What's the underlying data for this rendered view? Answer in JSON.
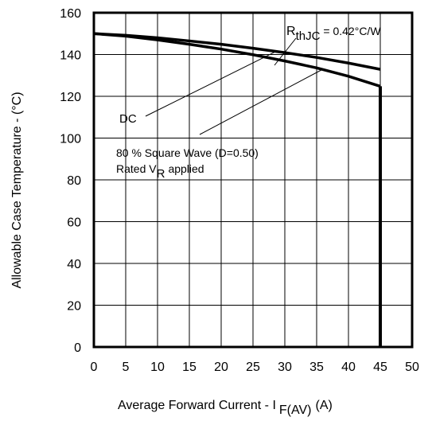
{
  "chart_data": {
    "type": "line",
    "title": "",
    "xlabel": "Average Forward Current - I",
    "xlabel_sub": "F(AV)",
    "xlabel_unit": "(A)",
    "ylabel": "Allowable Case Temperature - (°C)",
    "xlim": [
      0,
      50
    ],
    "ylim": [
      0,
      160
    ],
    "xticks": [
      0,
      5,
      10,
      15,
      20,
      25,
      30,
      35,
      40,
      45,
      50
    ],
    "yticks": [
      0,
      20,
      40,
      60,
      80,
      100,
      120,
      140,
      160
    ],
    "grid": true,
    "series": [
      {
        "name": "DC",
        "x": [
          0,
          5,
          10,
          15,
          20,
          25,
          30,
          35,
          40,
          45
        ],
        "y": [
          150,
          149.2,
          148,
          146.5,
          144.9,
          143,
          140.9,
          138.6,
          135.9,
          132.9
        ]
      },
      {
        "name": "80 % Square Wave (D=0.50)",
        "x": [
          0,
          5,
          10,
          15,
          20,
          25,
          30,
          35,
          40,
          45
        ],
        "y": [
          150,
          148.8,
          147,
          144.9,
          142.6,
          139.9,
          136.9,
          133.6,
          129.6,
          124.8
        ]
      }
    ],
    "cutoff_x": 45,
    "annotations": {
      "rth_main": "R",
      "rth_sub": "thJC",
      "rth_value": "= 0.42°C/W",
      "dc_label": "DC",
      "square_label": "80 % Square Wave (D=0.50)",
      "rated_main": "Rated V",
      "rated_sub": "R",
      "rated_tail": "applied"
    }
  }
}
